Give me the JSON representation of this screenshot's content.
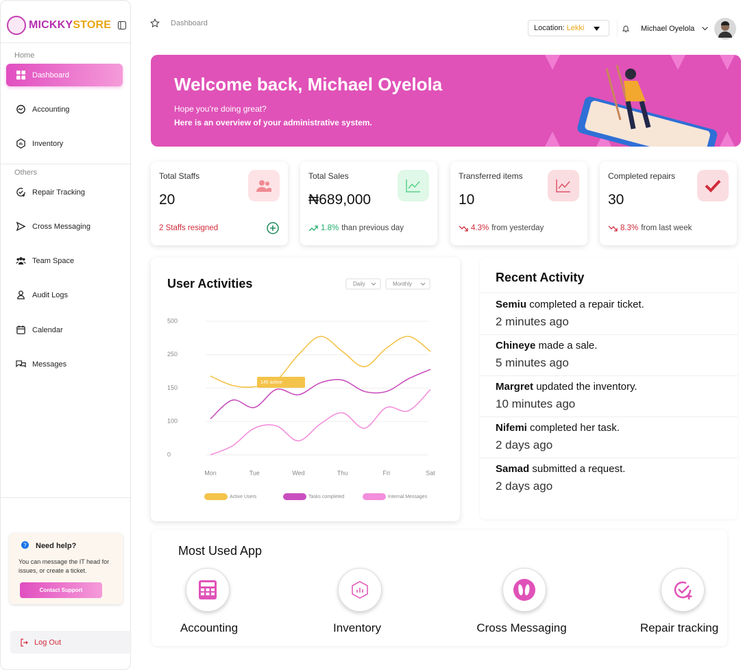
{
  "sidebar": {
    "brand": {
      "first": "MICKKY",
      "second": "STORE"
    },
    "sections": [
      {
        "title": "Home",
        "items": [
          "Dashboard",
          "Accounting",
          "Inventory"
        ]
      },
      {
        "title": "Others",
        "items": [
          "Repair Tracking",
          "Cross Messaging",
          "Team Space",
          "Audit Logs",
          "Calendar",
          "Messages"
        ]
      }
    ],
    "help": {
      "title": "Need help?",
      "text": "You can message the IT head for issues, or create a ticket.",
      "button": "Contact Support"
    },
    "logout": "Log Out"
  },
  "header": {
    "breadcrumb": "Dashboard",
    "location_label": "Location:",
    "location_value": "Lekki",
    "user": "Michael Oyelola"
  },
  "banner": {
    "title": "Welcome back, Michael Oyelola",
    "line1": "Hope you’re doing great?",
    "line2": "Here is an overview of your administrative system."
  },
  "stats": [
    {
      "label": "Total Staffs",
      "value": "20",
      "note": "2 Staffs resigned"
    },
    {
      "label": "Total Sales",
      "value": "₦689,000",
      "change": "1.8%",
      "note": "than previous day"
    },
    {
      "label": "Transferred items",
      "value": "10",
      "change": "4.3%",
      "note": "from yesterday"
    },
    {
      "label": "Completed repairs",
      "value": "30",
      "change": "8.3%",
      "note": "from last week"
    }
  ],
  "chart_data": {
    "type": "line",
    "title": "User Activities",
    "filters": [
      "Daily",
      "Monthly"
    ],
    "annotation": "145 active",
    "categories": [
      "Mon",
      null,
      "Tue",
      null,
      "Wed",
      null,
      "Thu",
      null,
      "Fri",
      null,
      "Sat"
    ],
    "series": [
      {
        "name": "Active Users",
        "color": "#f4c34a",
        "values": [
          186,
          158,
          154,
          174,
          250,
          387,
          274,
          214,
          299,
          387,
          274
        ]
      },
      {
        "name": "Tasks completed",
        "color": "#c94fbf",
        "values": [
          104,
          132,
          121,
          148,
          140,
          166,
          174,
          145,
          145,
          178,
          206
        ]
      },
      {
        "name": "Internal Messages",
        "color": "#f38fdc",
        "values": [
          0,
          27,
          80,
          87,
          42,
          93,
          113,
          80,
          121,
          116,
          148
        ]
      }
    ],
    "ylim": [
      0,
      500
    ],
    "yticks": [
      0,
      100,
      150,
      250,
      500
    ],
    "grid": true
  },
  "activity": {
    "title": "Recent Activity",
    "items": [
      {
        "name": "Semiu",
        "action": "completed a repair ticket.",
        "time": "2 minutes ago"
      },
      {
        "name": "Chineye",
        "action": "made a sale.",
        "time": "5 minutes ago"
      },
      {
        "name": "Margret",
        "action": "updated the inventory.",
        "time": "10 minutes ago"
      },
      {
        "name": "Nifemi",
        "action": "completed her task.",
        "time": "2 days ago"
      },
      {
        "name": "Samad",
        "action": "submitted a request.",
        "time": "2 days ago"
      }
    ]
  },
  "apps": {
    "title": "Most Used App",
    "items": [
      "Accounting",
      "Inventory",
      "Cross Messaging",
      "Repair tracking"
    ]
  }
}
